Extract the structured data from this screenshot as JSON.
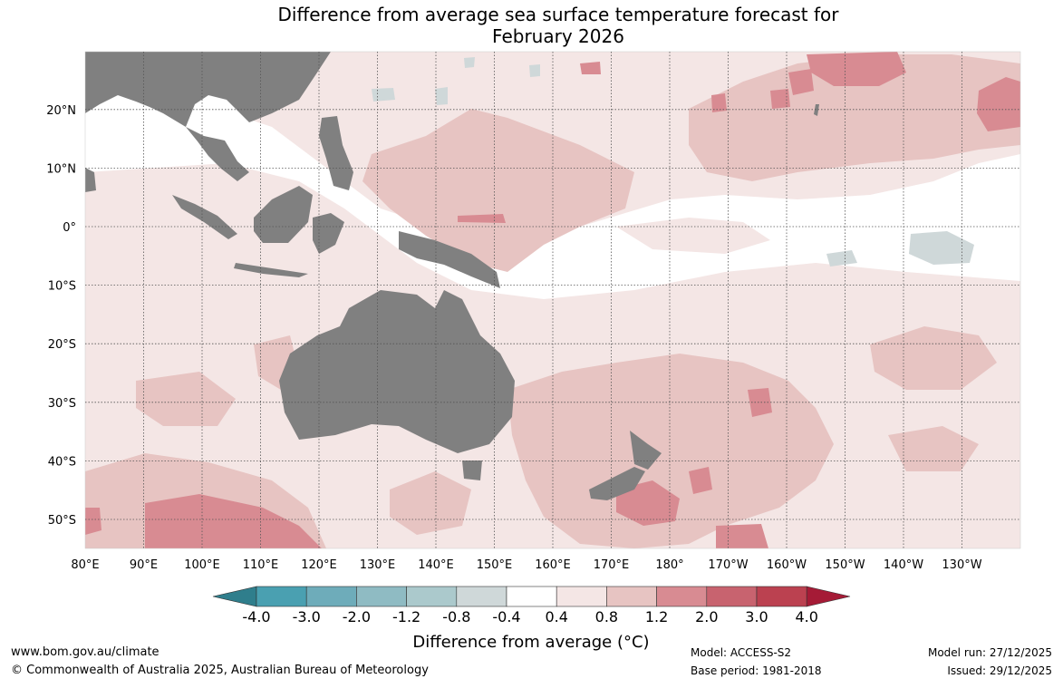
{
  "title": {
    "line1": "Difference from average sea surface temperature forecast for",
    "line2": "February 2026"
  },
  "map": {
    "lat_labels": [
      "20°N",
      "10°N",
      "0°",
      "10°S",
      "20°S",
      "30°S",
      "40°S",
      "50°S"
    ],
    "lon_labels": [
      "80°E",
      "90°E",
      "100°E",
      "110°E",
      "120°E",
      "130°E",
      "140°E",
      "150°E",
      "160°E",
      "170°E",
      "180°",
      "170°W",
      "160°W",
      "150°W",
      "140°W",
      "130°W"
    ]
  },
  "colorbar": {
    "labels": [
      "-4.0",
      "-3.0",
      "-2.0",
      "-1.2",
      "-0.8",
      "-0.4",
      "0.4",
      "0.8",
      "1.2",
      "2.0",
      "3.0",
      "4.0"
    ],
    "colors": [
      "#4aa0b1",
      "#6eacba",
      "#8fbbc3",
      "#abc9cc",
      "#cfd8d9",
      "#ffffff",
      "#f4e6e5",
      "#e7c4c2",
      "#d88b92",
      "#c8636f",
      "#bb4150"
    ],
    "under_color": "#2f7e8c",
    "over_color": "#a51b36",
    "title": "Difference from average (°C)"
  },
  "colors": {
    "land": "#808080",
    "gridline": "#555555"
  },
  "footer": {
    "website": "www.bom.gov.au/climate",
    "copyright": "© Commonwealth of Australia 2025, Australian Bureau of Meteorology",
    "model": "Model: ACCESS-S2",
    "base_period": "Base period: 1981-2018",
    "model_run": "Model run: 27/12/2025",
    "issued": "Issued: 29/12/2025"
  }
}
